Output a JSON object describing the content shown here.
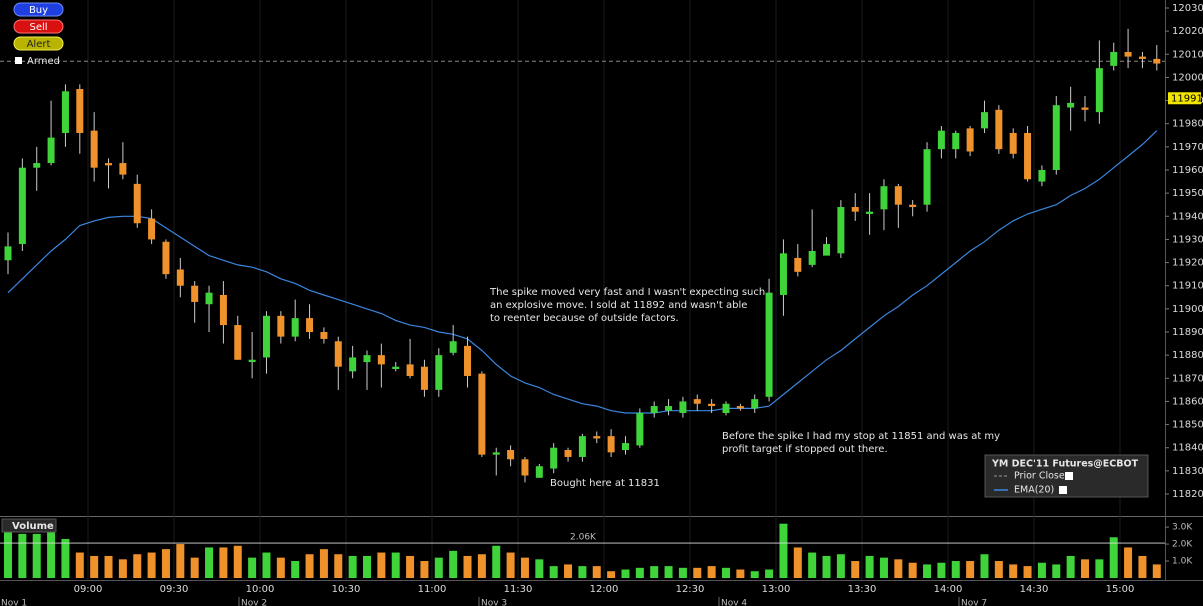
{
  "chart_data": {
    "type": "candlestick",
    "buttons": [
      "Buy",
      "Sell",
      "Alert"
    ],
    "armed": "Armed",
    "ylim": [
      11815,
      12033
    ],
    "yticks": [
      11820,
      11830,
      11840,
      11850,
      11860,
      11870,
      11880,
      11890,
      11900,
      11910,
      11920,
      11930,
      11940,
      11950,
      11960,
      11970,
      11980,
      11990,
      12000,
      12010,
      12020,
      12030
    ],
    "last_price": 11991,
    "prior_close": 12007,
    "candles": {
      "open": [
        11921,
        11928,
        11961,
        11963,
        11976,
        11995,
        11977,
        11963,
        11963,
        11954,
        11939,
        11929,
        11917,
        11910,
        11902,
        11906,
        11893,
        11877,
        11879,
        11897,
        11888,
        11896,
        11890,
        11886,
        11873,
        11877,
        11880,
        11874,
        11876,
        11875,
        11865,
        11881,
        11884,
        11872,
        11837,
        11839,
        11835,
        11827,
        11831,
        11839,
        11836,
        11845,
        11845,
        11839,
        11841,
        11855,
        11856,
        11855,
        11861,
        11859,
        11855,
        11858,
        11857,
        11862,
        11906,
        11922,
        11919,
        11923,
        11924,
        11944,
        11941,
        11943,
        11953,
        11945,
        11945,
        11969,
        11969,
        11978,
        11978,
        11986,
        11976,
        11976,
        11955,
        11960,
        11987,
        11987,
        11985,
        12005,
        12011,
        12009,
        12008
      ],
      "high": [
        11933,
        11965,
        11970,
        11990,
        11997,
        11997,
        11985,
        11965,
        11972,
        11958,
        11943,
        11930,
        11922,
        11912,
        11910,
        11912,
        11897,
        11890,
        11899,
        11899,
        11904,
        11902,
        11892,
        11888,
        11884,
        11882,
        11885,
        11877,
        11887,
        11878,
        11883,
        11893,
        11888,
        11873,
        11840,
        11841,
        11836,
        11833,
        11842,
        11840,
        11846,
        11847,
        11848,
        11845,
        11857,
        11860,
        11861,
        11862,
        11863,
        11861,
        11860,
        11859,
        11863,
        11913,
        11930,
        11928,
        11943,
        11931,
        11947,
        11950,
        11950,
        11956,
        11954,
        11947,
        11972,
        11979,
        11977,
        11979,
        11990,
        11988,
        11978,
        11979,
        11962,
        11992,
        11996,
        11992,
        12016,
        12015,
        12021,
        12011,
        12014
      ],
      "low": [
        11915,
        11925,
        11951,
        11962,
        11970,
        11967,
        11955,
        11952,
        11956,
        11935,
        11928,
        11913,
        11905,
        11894,
        11890,
        11885,
        11878,
        11870,
        11872,
        11885,
        11886,
        11887,
        11885,
        11865,
        11870,
        11865,
        11866,
        11873,
        11870,
        11862,
        11862,
        11880,
        11866,
        11836,
        11828,
        11832,
        11825,
        11827,
        11829,
        11834,
        11834,
        11842,
        11836,
        11837,
        11840,
        11853,
        11854,
        11853,
        11856,
        11855,
        11854,
        11856,
        11855,
        11860,
        11897,
        11914,
        11918,
        11924,
        11922,
        11938,
        11932,
        11934,
        11935,
        11940,
        11942,
        11965,
        11965,
        11966,
        11976,
        11967,
        11965,
        11955,
        11953,
        11958,
        11977,
        11981,
        11980,
        12003,
        12004,
        12004,
        12003
      ],
      "close": [
        11927,
        11961,
        11963,
        11974,
        11994,
        11976,
        11961,
        11962,
        11958,
        11937,
        11930,
        11915,
        11910,
        11903,
        11907,
        11893,
        11878,
        11878,
        11897,
        11888,
        11896,
        11890,
        11887,
        11875,
        11879,
        11880,
        11876,
        11875,
        11871,
        11865,
        11880,
        11886,
        11871,
        11837,
        11838,
        11835,
        11828,
        11832,
        11840,
        11836,
        11845,
        11844,
        11838,
        11842,
        11855,
        11858,
        11858,
        11860,
        11859,
        11858,
        11859,
        11857,
        11861,
        11907,
        11924,
        11916,
        11925,
        11928,
        11944,
        11942,
        11942,
        11953,
        11945,
        11944,
        11969,
        11977,
        11976,
        11968,
        11985,
        11969,
        11967,
        11956,
        11960,
        11988,
        11989,
        11986,
        12004,
        12011,
        12009,
        12008,
        12006
      ],
      "up_color": "#3fd43a",
      "down_color": "#f0922c"
    },
    "ema": {
      "name": "EMA(20)",
      "color": "#3b86e0",
      "values": [
        11907,
        11913,
        11919,
        11925,
        11930,
        11936,
        11938,
        11939.5,
        11940,
        11940,
        11939,
        11935,
        11931,
        11927,
        11923,
        11921,
        11919,
        11918,
        11916,
        11913,
        11911,
        11908,
        11906,
        11904,
        11902,
        11900,
        11898,
        11895,
        11893,
        11892,
        11890,
        11889,
        11887,
        11882,
        11876,
        11871,
        11868,
        11866,
        11863,
        11861,
        11859,
        11858,
        11856,
        11855,
        11855,
        11855,
        11856,
        11856,
        11856,
        11856,
        11857,
        11857,
        11857,
        11858,
        11863,
        11868,
        11873,
        11878,
        11882,
        11887,
        11892,
        11897,
        11901,
        11906,
        11910,
        11915,
        11920,
        11925,
        11929,
        11934,
        11938,
        11941,
        11943,
        11945,
        11949,
        11952,
        11956,
        11961,
        11966,
        11971,
        11977
      ]
    },
    "legend": {
      "title": "YM DEC'11 Futures@ECBOT",
      "prior_close": "Prior Close"
    },
    "annotations": [
      {
        "lines": [
          "The spike moved very fast and I wasn't expecting such",
          "an explosive move. I sold at 11892 and wasn't able",
          "to reenter because of outside factors."
        ]
      },
      {
        "lines": [
          "Before the spike I had my stop at 11851 and was at my",
          "profit target if stopped out there."
        ]
      },
      {
        "lines": [
          "Bought here at 11831"
        ]
      }
    ],
    "volume": {
      "title": "Volume",
      "ylim": [
        0,
        3.3
      ],
      "yticks": [
        {
          "value": 1,
          "label": "1.0K"
        },
        {
          "value": 2,
          "label": "2.0K"
        },
        {
          "value": 3,
          "label": "3.0K"
        }
      ],
      "ref_line": {
        "value": 2.06,
        "label": "2.06K"
      },
      "values": [
        3.2,
        2.6,
        2.6,
        2.7,
        2.3,
        1.5,
        1.3,
        1.3,
        1.1,
        1.4,
        1.5,
        1.7,
        2.0,
        1.2,
        1.8,
        1.8,
        1.9,
        1.2,
        1.5,
        1.2,
        1.0,
        1.4,
        1.7,
        1.4,
        1.3,
        1.3,
        1.5,
        1.5,
        1.3,
        1.0,
        1.2,
        1.6,
        1.3,
        1.4,
        1.9,
        1.5,
        1.2,
        1.1,
        0.7,
        0.8,
        0.7,
        0.7,
        0.4,
        0.5,
        0.6,
        0.7,
        0.7,
        0.6,
        0.6,
        0.7,
        0.6,
        0.5,
        0.4,
        0.5,
        3.2,
        1.8,
        1.5,
        1.3,
        1.4,
        1.0,
        1.3,
        1.2,
        1.1,
        0.9,
        0.8,
        0.9,
        1.0,
        1.0,
        1.4,
        1.0,
        0.8,
        0.7,
        0.9,
        0.8,
        1.3,
        1.1,
        1.1,
        2.4,
        1.8,
        1.3,
        0.8
      ]
    },
    "time_labels": [
      "09:00",
      "09:30",
      "10:00",
      "10:30",
      "11:00",
      "11:30",
      "12:00",
      "12:30",
      "13:00",
      "13:30",
      "14:00",
      "14:30",
      "15:00"
    ],
    "date_labels": [
      "Nov 1",
      "Nov 2",
      "Nov 3",
      "Nov 4",
      "Nov 7"
    ]
  }
}
